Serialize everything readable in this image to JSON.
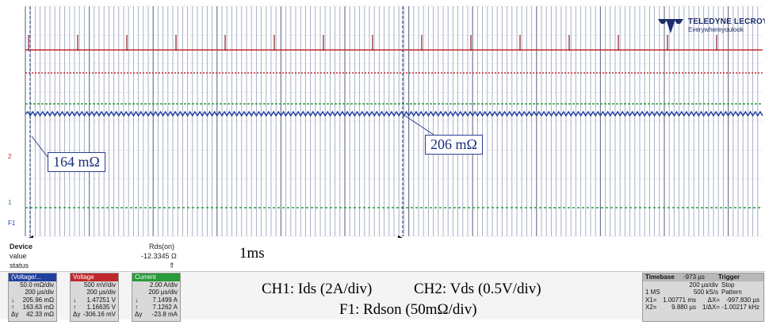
{
  "logo": {
    "brand": "TELEDYNE LECROY",
    "tagline": "Everywhereyoulook"
  },
  "callouts": {
    "left": "164 mΩ",
    "right": "206 mΩ"
  },
  "measurement": {
    "row_labels": [
      "Device",
      "value",
      "status"
    ],
    "param_name": "Rds(on)",
    "param_value": "-12.3345 Ω",
    "param_status": "⇑"
  },
  "span_label": "1ms",
  "channels": [
    {
      "id": "F1",
      "name": "(Voltage/...",
      "color": "#2040a0",
      "rows": [
        [
          "",
          "50.0 mΩ/div"
        ],
        [
          "",
          "200 µs/div"
        ],
        [
          "↓",
          "205.96 mΩ"
        ],
        [
          "↑",
          "163.63 mΩ"
        ],
        [
          "Δy",
          "42.33 mΩ"
        ]
      ]
    },
    {
      "id": "C2",
      "name": "Voltage",
      "color": "#c0282d",
      "rows": [
        [
          "",
          "500 mV/div"
        ],
        [
          "",
          "200 µs/div"
        ],
        [
          "↓",
          "1.47251 V"
        ],
        [
          "↑",
          "1.16635 V"
        ],
        [
          "Δy",
          "-306.16 mV"
        ]
      ]
    },
    {
      "id": "C1",
      "name": "Current",
      "color": "#2a9a3a",
      "rows": [
        [
          "",
          "2.00 A/div"
        ],
        [
          "",
          "200 µs/div"
        ],
        [
          "↓",
          "7.1499 A"
        ],
        [
          "↑",
          "7.1262 A"
        ],
        [
          "Δy",
          "-23.8 mA"
        ]
      ]
    }
  ],
  "legend": {
    "ch1": "CH1: Ids (2A/div)",
    "ch2": "CH2: Vds (0.5V/div)",
    "f1": "F1: Rdson (50mΩ/div)"
  },
  "colors": {
    "ch1": "#2a9a3a",
    "ch2": "#c0282d",
    "f1": "#2040a0",
    "grid": "#b0b8c8",
    "trace": "#a0a8c0"
  },
  "timebase": {
    "title": "Timebase",
    "delay": "-973 µs",
    "rows": [
      [
        "",
        "200 µs/div"
      ],
      [
        "1 MS",
        "500 kS/s"
      ]
    ]
  },
  "trigger": {
    "title": "Trigger",
    "rows": [
      "Stop",
      "Pattern"
    ]
  },
  "cursors": [
    [
      "X1=",
      "1.00771 ms",
      "ΔX=",
      "-997.830 µs"
    ],
    [
      "X2=",
      "9.880 µs",
      "1/ΔX=",
      "-1.00217 kHz"
    ]
  ],
  "chart_data": {
    "type": "line",
    "title": "",
    "series": [
      {
        "name": "CH1: Ids (2A/div)",
        "x": [
          "X2",
          "X1"
        ],
        "values": [
          7.1262,
          7.1499
        ]
      },
      {
        "name": "CH2: Vds (0.5V/div)",
        "x": [
          "X2",
          "X1"
        ],
        "values": [
          1.16635,
          1.47251
        ]
      },
      {
        "name": "F1: Rdson (50mΩ/div)",
        "x": [
          "X2",
          "X1"
        ],
        "values": [
          0.16363,
          0.20596
        ]
      }
    ]
  }
}
